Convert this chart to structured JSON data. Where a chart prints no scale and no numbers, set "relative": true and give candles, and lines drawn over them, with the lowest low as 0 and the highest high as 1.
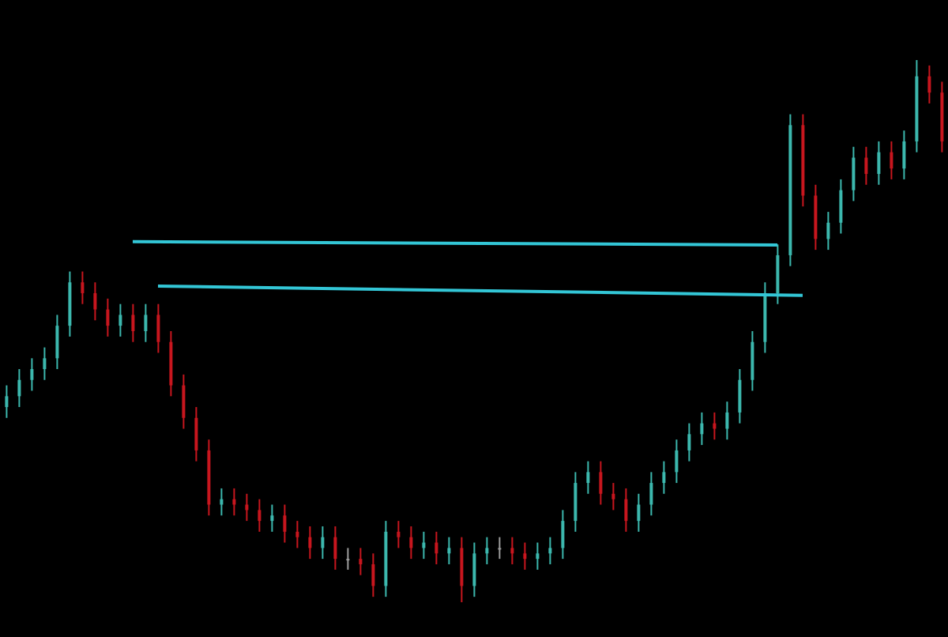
{
  "chart_data": {
    "type": "candlestick",
    "relative": true,
    "tick_labels": false,
    "categories": [
      null,
      null,
      null,
      null,
      null,
      null,
      null,
      null,
      null,
      null,
      null,
      null,
      null,
      null,
      null,
      null,
      null,
      null,
      null,
      null,
      null,
      null,
      null,
      null,
      null,
      null,
      null,
      null,
      null,
      null,
      null,
      null,
      null,
      null,
      null,
      null,
      null,
      null,
      null,
      null,
      null,
      null,
      null,
      null,
      null,
      null,
      null,
      null,
      null,
      null,
      null,
      null,
      null,
      null,
      null,
      null,
      null,
      null,
      null,
      null,
      null,
      null,
      null,
      null,
      null,
      null,
      null,
      null,
      null,
      null,
      null,
      null,
      null,
      null,
      null
    ],
    "ohlc": [
      [
        0.36,
        0.4,
        0.34,
        0.38
      ],
      [
        0.38,
        0.43,
        0.36,
        0.41
      ],
      [
        0.41,
        0.45,
        0.39,
        0.43
      ],
      [
        0.43,
        0.47,
        0.41,
        0.45
      ],
      [
        0.45,
        0.53,
        0.43,
        0.51
      ],
      [
        0.51,
        0.61,
        0.49,
        0.59
      ],
      [
        0.59,
        0.61,
        0.55,
        0.57
      ],
      [
        0.57,
        0.59,
        0.52,
        0.54
      ],
      [
        0.54,
        0.56,
        0.49,
        0.51
      ],
      [
        0.51,
        0.55,
        0.49,
        0.53
      ],
      [
        0.53,
        0.55,
        0.48,
        0.5
      ],
      [
        0.5,
        0.55,
        0.48,
        0.53
      ],
      [
        0.53,
        0.55,
        0.46,
        0.48
      ],
      [
        0.48,
        0.5,
        0.38,
        0.4
      ],
      [
        0.4,
        0.42,
        0.32,
        0.34
      ],
      [
        0.34,
        0.36,
        0.26,
        0.28
      ],
      [
        0.28,
        0.3,
        0.16,
        0.18
      ],
      [
        0.18,
        0.21,
        0.16,
        0.19
      ],
      [
        0.19,
        0.21,
        0.16,
        0.18
      ],
      [
        0.18,
        0.2,
        0.15,
        0.17
      ],
      [
        0.17,
        0.19,
        0.13,
        0.15
      ],
      [
        0.15,
        0.18,
        0.13,
        0.16
      ],
      [
        0.16,
        0.18,
        0.11,
        0.13
      ],
      [
        0.13,
        0.15,
        0.1,
        0.12
      ],
      [
        0.12,
        0.14,
        0.08,
        0.1
      ],
      [
        0.1,
        0.14,
        0.08,
        0.12
      ],
      [
        0.12,
        0.14,
        0.06,
        0.08
      ],
      [
        0.08,
        0.1,
        0.06,
        0.08
      ],
      [
        0.08,
        0.1,
        0.05,
        0.07
      ],
      [
        0.07,
        0.09,
        0.01,
        0.03
      ],
      [
        0.03,
        0.15,
        0.01,
        0.13
      ],
      [
        0.13,
        0.15,
        0.1,
        0.12
      ],
      [
        0.12,
        0.14,
        0.08,
        0.1
      ],
      [
        0.1,
        0.13,
        0.08,
        0.11
      ],
      [
        0.11,
        0.13,
        0.07,
        0.09
      ],
      [
        0.09,
        0.12,
        0.07,
        0.1
      ],
      [
        0.1,
        0.12,
        0,
        0.03
      ],
      [
        0.03,
        0.11,
        0.01,
        0.09
      ],
      [
        0.09,
        0.12,
        0.07,
        0.1
      ],
      [
        0.1,
        0.12,
        0.08,
        0.1
      ],
      [
        0.1,
        0.12,
        0.07,
        0.09
      ],
      [
        0.09,
        0.11,
        0.06,
        0.08
      ],
      [
        0.08,
        0.11,
        0.06,
        0.09
      ],
      [
        0.09,
        0.12,
        0.07,
        0.1
      ],
      [
        0.1,
        0.17,
        0.08,
        0.15
      ],
      [
        0.15,
        0.24,
        0.13,
        0.22
      ],
      [
        0.22,
        0.26,
        0.2,
        0.24
      ],
      [
        0.24,
        0.26,
        0.18,
        0.2
      ],
      [
        0.2,
        0.22,
        0.17,
        0.19
      ],
      [
        0.19,
        0.21,
        0.13,
        0.15
      ],
      [
        0.15,
        0.2,
        0.13,
        0.18
      ],
      [
        0.18,
        0.24,
        0.16,
        0.22
      ],
      [
        0.22,
        0.26,
        0.2,
        0.24
      ],
      [
        0.24,
        0.3,
        0.22,
        0.28
      ],
      [
        0.28,
        0.33,
        0.26,
        0.31
      ],
      [
        0.31,
        0.35,
        0.29,
        0.33
      ],
      [
        0.33,
        0.35,
        0.3,
        0.32
      ],
      [
        0.32,
        0.37,
        0.3,
        0.35
      ],
      [
        0.35,
        0.43,
        0.33,
        0.41
      ],
      [
        0.41,
        0.5,
        0.39,
        0.48
      ],
      [
        0.48,
        0.59,
        0.46,
        0.57
      ],
      [
        0.57,
        0.66,
        0.55,
        0.64
      ],
      [
        0.64,
        0.9,
        0.62,
        0.88
      ],
      [
        0.88,
        0.9,
        0.73,
        0.75
      ],
      [
        0.75,
        0.77,
        0.65,
        0.67
      ],
      [
        0.67,
        0.72,
        0.65,
        0.7
      ],
      [
        0.7,
        0.78,
        0.68,
        0.76
      ],
      [
        0.76,
        0.84,
        0.74,
        0.82
      ],
      [
        0.82,
        0.84,
        0.77,
        0.79
      ],
      [
        0.79,
        0.85,
        0.77,
        0.83
      ],
      [
        0.83,
        0.85,
        0.78,
        0.8
      ],
      [
        0.8,
        0.87,
        0.78,
        0.85
      ],
      [
        0.85,
        1.0,
        0.83,
        0.97
      ],
      [
        0.97,
        0.99,
        0.92,
        0.94
      ],
      [
        0.94,
        0.96,
        0.83,
        0.85
      ]
    ],
    "colors": [
      "#3cb8ae",
      "#3cb8ae",
      "#3cb8ae",
      "#3cb8ae",
      "#3cb8ae",
      "#3cb8ae",
      "#c8161e",
      "#c8161e",
      "#c8161e",
      "#3cb8ae",
      "#c8161e",
      "#3cb8ae",
      "#c8161e",
      "#c8161e",
      "#c8161e",
      "#c8161e",
      "#c8161e",
      "#3cb8ae",
      "#c8161e",
      "#c8161e",
      "#c8161e",
      "#3cb8ae",
      "#c8161e",
      "#c8161e",
      "#c8161e",
      "#3cb8ae",
      "#c8161e",
      "#9e9e9e",
      "#c8161e",
      "#c8161e",
      "#3cb8ae",
      "#c8161e",
      "#c8161e",
      "#3cb8ae",
      "#c8161e",
      "#3cb8ae",
      "#c8161e",
      "#3cb8ae",
      "#3cb8ae",
      "#9e9e9e",
      "#c8161e",
      "#c8161e",
      "#3cb8ae",
      "#3cb8ae",
      "#3cb8ae",
      "#3cb8ae",
      "#3cb8ae",
      "#c8161e",
      "#c8161e",
      "#c8161e",
      "#3cb8ae",
      "#3cb8ae",
      "#3cb8ae",
      "#3cb8ae",
      "#3cb8ae",
      "#3cb8ae",
      "#c8161e",
      "#3cb8ae",
      "#3cb8ae",
      "#3cb8ae",
      "#3cb8ae",
      "#3cb8ae",
      "#3cb8ae",
      "#c8161e",
      "#c8161e",
      "#3cb8ae",
      "#3cb8ae",
      "#3cb8ae",
      "#c8161e",
      "#3cb8ae",
      "#c8161e",
      "#3cb8ae",
      "#3cb8ae",
      "#c8161e",
      "#c8161e"
    ],
    "series": [
      {
        "type": "line",
        "color": "#33c6d6",
        "values": [
          null,
          null,
          null,
          null,
          null,
          null,
          null,
          null,
          null,
          null,
          0.665,
          null,
          null,
          null,
          null,
          null,
          null,
          null,
          null,
          null,
          null,
          null,
          null,
          null,
          null,
          null,
          null,
          null,
          null,
          null,
          null,
          null,
          null,
          null,
          null,
          null,
          null,
          null,
          null,
          null,
          null,
          null,
          null,
          null,
          null,
          null,
          null,
          null,
          null,
          null,
          null,
          null,
          null,
          null,
          null,
          null,
          null,
          null,
          null,
          null,
          null,
          0.659,
          null,
          null,
          null,
          null,
          null,
          null,
          null,
          null,
          null,
          null,
          null,
          null,
          null
        ]
      },
      {
        "type": "line",
        "color": "#33c6d6",
        "values": [
          null,
          null,
          null,
          null,
          null,
          null,
          null,
          null,
          null,
          null,
          null,
          null,
          0.583,
          null,
          null,
          null,
          null,
          null,
          null,
          null,
          null,
          null,
          null,
          null,
          null,
          null,
          null,
          null,
          null,
          null,
          null,
          null,
          null,
          null,
          null,
          null,
          null,
          null,
          null,
          null,
          null,
          null,
          null,
          null,
          null,
          null,
          null,
          null,
          null,
          null,
          null,
          null,
          null,
          null,
          null,
          null,
          null,
          null,
          null,
          null,
          null,
          null,
          null,
          0.566,
          null,
          null,
          null,
          null,
          null,
          null,
          null,
          null,
          null,
          null,
          null
        ]
      }
    ]
  }
}
